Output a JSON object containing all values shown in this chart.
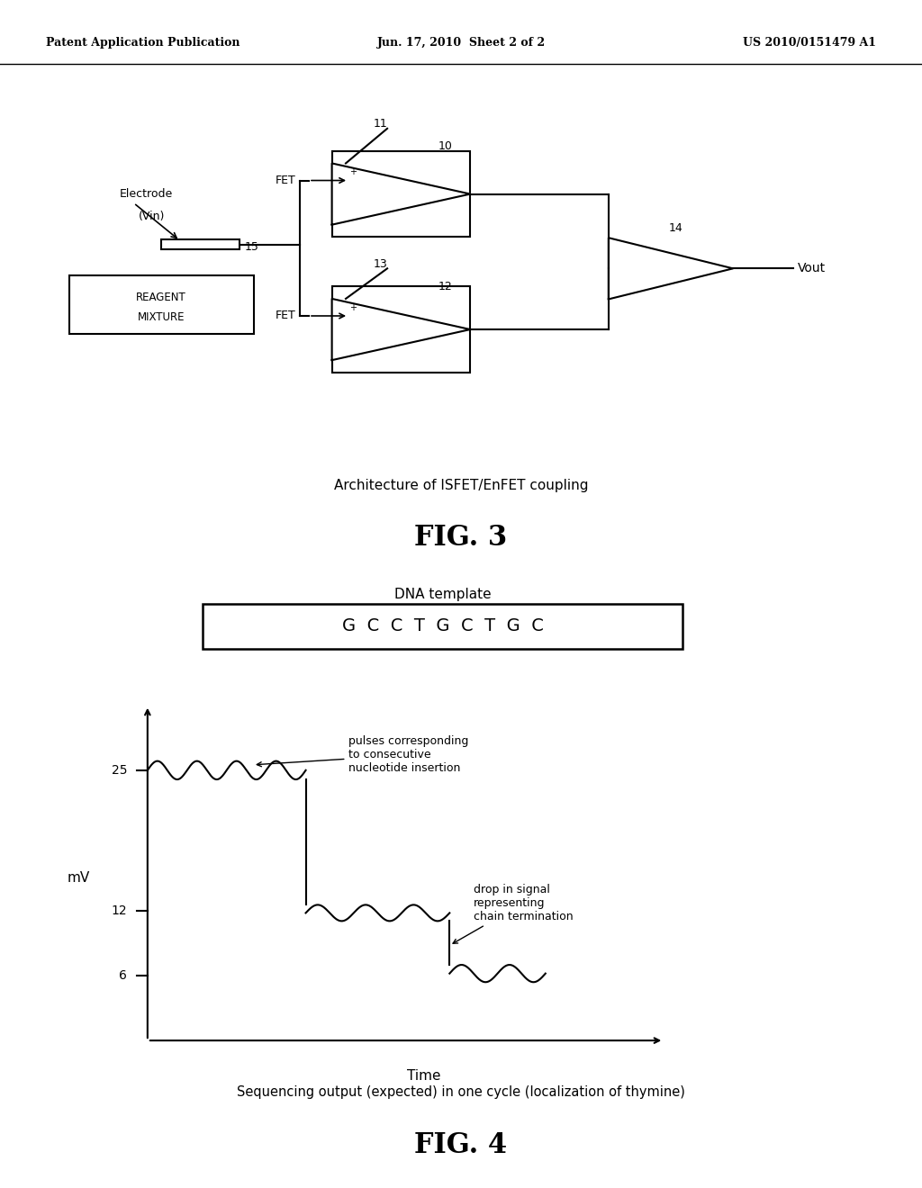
{
  "background_color": "#ffffff",
  "header_left": "Patent Application Publication",
  "header_center": "Jun. 17, 2010  Sheet 2 of 2",
  "header_right": "US 2010/0151479 A1",
  "fig3_caption": "Architecture of ISFET/EnFET coupling",
  "fig3_label": "FIG. 3",
  "fig4_caption": "Sequencing output (expected) in one cycle (localization of thymine)",
  "fig4_label": "FIG. 4",
  "dna_template_label": "DNA template",
  "dna_sequence": "G  C  C  T  G  C  T  G  C",
  "graph_ylabel": "mV",
  "graph_xlabel": "Time",
  "graph_yticks": [
    6,
    12,
    25
  ],
  "annotation1": "pulses corresponding\nto consecutive\nnucleotide insertion",
  "annotation2": "drop in signal\nrepresenting\nchain termination"
}
